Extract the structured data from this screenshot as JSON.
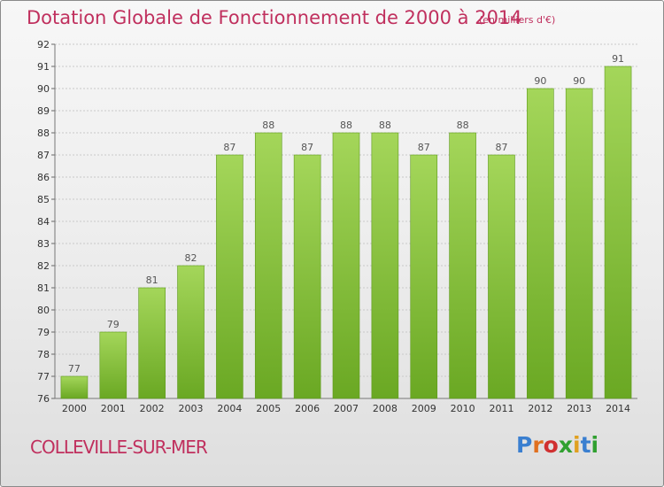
{
  "header": {
    "title": "Dotation Globale de Fonctionnement de 2000 à 2014",
    "unit": "(en milliers d'€)"
  },
  "footer": {
    "commune": "COLLEVILLE-SUR-MER",
    "logo_text": "Proxiti"
  },
  "colors": {
    "title": "#c0305e",
    "bar": "#7dbd2e",
    "bar_light": "#a4d65a",
    "bar_dark": "#5e9a1c",
    "logo": [
      "#3a7fd0",
      "#e07020",
      "#d03030",
      "#30a030",
      "#e0a020",
      "#3a7fd0",
      "#30a030"
    ]
  },
  "chart_data": {
    "type": "bar",
    "categories": [
      "2000",
      "2001",
      "2002",
      "2003",
      "2004",
      "2005",
      "2006",
      "2007",
      "2008",
      "2009",
      "2010",
      "2011",
      "2012",
      "2013",
      "2014"
    ],
    "values": [
      77,
      79,
      81,
      82,
      87,
      88,
      87,
      88,
      88,
      87,
      88,
      87,
      90,
      90,
      91
    ],
    "ylim": [
      76,
      92
    ],
    "yticks": [
      76,
      77,
      78,
      79,
      80,
      81,
      82,
      83,
      84,
      85,
      86,
      87,
      88,
      89,
      90,
      91,
      92
    ],
    "grid": true
  }
}
